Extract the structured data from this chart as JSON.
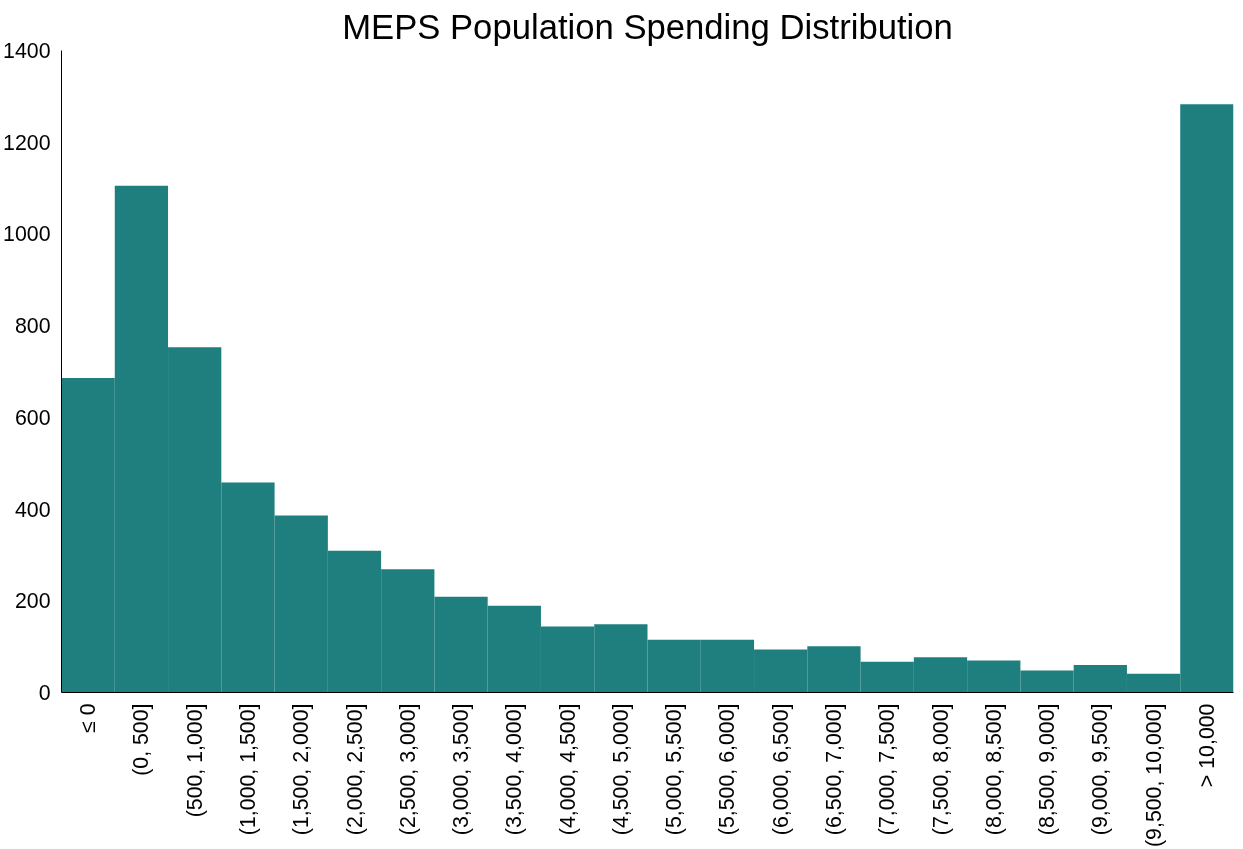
{
  "chart_data": {
    "type": "bar",
    "title": "MEPS Population Spending Distribution",
    "categories": [
      "≤ 0",
      "(0, 500]",
      "(500, 1,000]",
      "(1,000, 1,500]",
      "(1,500, 2,000]",
      "(2,000, 2,500]",
      "(2,500, 3,000]",
      "(3,000, 3,500]",
      "(3,500, 4,000]",
      "(4,000, 4,500]",
      "(4,500, 5,000]",
      "(5,000, 5,500]",
      "(5,500, 6,000]",
      "(6,000, 6,500]",
      "(6,500, 7,000]",
      "(7,000, 7,500]",
      "(7,500, 8,000]",
      "(8,000, 8,500]",
      "(8,500, 9,000]",
      "(9,000, 9,500]",
      "(9,500, 10,000]",
      "> 10,000"
    ],
    "values": [
      686,
      1105,
      753,
      458,
      386,
      309,
      269,
      209,
      189,
      144,
      149,
      115,
      115,
      94,
      101,
      67,
      77,
      70,
      48,
      60,
      41,
      1283
    ],
    "color": "#1f7f7f",
    "ylim": [
      0,
      1400
    ],
    "yticks": [
      0,
      200,
      400,
      600,
      800,
      1000,
      1200,
      1400
    ]
  }
}
